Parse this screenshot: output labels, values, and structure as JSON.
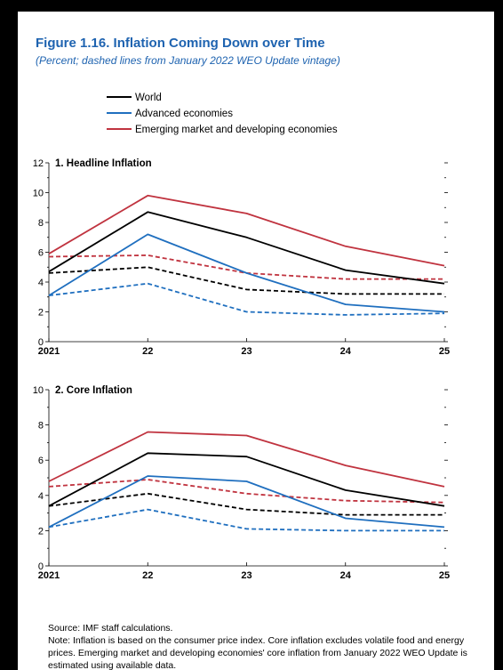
{
  "figure": {
    "title": "Figure 1.16.  Inflation Coming Down over Time",
    "subtitle": "(Percent; dashed lines from January 2022 WEO Update vintage)"
  },
  "legend": {
    "items": [
      {
        "label": "World",
        "color": "#000000"
      },
      {
        "label": "Advanced economies",
        "color": "#1f6fbf"
      },
      {
        "label": "Emerging market and developing economies",
        "color": "#c0333f"
      }
    ]
  },
  "notes": {
    "source": "Source: IMF staff calculations.",
    "note": "Note: Inflation is based on the consumer price index. Core inflation excludes volatile food and energy prices. Emerging market and developing economies' core inflation from January 2022 WEO Update is estimated using available data."
  },
  "chart_data": [
    {
      "type": "line",
      "title": "1. Headline Inflation",
      "x": [
        "2021",
        "22",
        "23",
        "24",
        "25"
      ],
      "ylim": [
        0,
        12
      ],
      "yticks": [
        0,
        2,
        4,
        6,
        8,
        10,
        12
      ],
      "series": [
        {
          "name": "World",
          "style": "solid",
          "color": "#000000",
          "values": [
            4.7,
            8.7,
            7.0,
            4.8,
            3.9
          ]
        },
        {
          "name": "Advanced economies",
          "style": "solid",
          "color": "#1f6fbf",
          "values": [
            3.1,
            7.2,
            4.6,
            2.5,
            2.0
          ]
        },
        {
          "name": "Emerging market and developing economies",
          "style": "solid",
          "color": "#c0333f",
          "values": [
            5.9,
            9.8,
            8.6,
            6.4,
            5.1
          ]
        },
        {
          "name": "World",
          "style": "dashed",
          "color": "#000000",
          "values": [
            4.6,
            5.0,
            3.5,
            3.2,
            3.2
          ]
        },
        {
          "name": "Advanced economies",
          "style": "dashed",
          "color": "#1f6fbf",
          "values": [
            3.1,
            3.9,
            2.0,
            1.8,
            1.9
          ]
        },
        {
          "name": "Emerging market and developing economies",
          "style": "dashed",
          "color": "#c0333f",
          "values": [
            5.7,
            5.8,
            4.6,
            4.2,
            4.2
          ]
        }
      ]
    },
    {
      "type": "line",
      "title": "2. Core Inflation",
      "x": [
        "2021",
        "22",
        "23",
        "24",
        "25"
      ],
      "ylim": [
        0,
        10
      ],
      "yticks": [
        0,
        2,
        4,
        6,
        8,
        10
      ],
      "series": [
        {
          "name": "World",
          "style": "solid",
          "color": "#000000",
          "values": [
            3.4,
            6.4,
            6.2,
            4.3,
            3.4
          ]
        },
        {
          "name": "Advanced economies",
          "style": "solid",
          "color": "#1f6fbf",
          "values": [
            2.2,
            5.1,
            4.8,
            2.7,
            2.2
          ]
        },
        {
          "name": "Emerging market and developing economies",
          "style": "solid",
          "color": "#c0333f",
          "values": [
            4.8,
            7.6,
            7.4,
            5.7,
            4.5
          ]
        },
        {
          "name": "World",
          "style": "dashed",
          "color": "#000000",
          "values": [
            3.4,
            4.1,
            3.2,
            2.9,
            2.9
          ]
        },
        {
          "name": "Advanced economies",
          "style": "dashed",
          "color": "#1f6fbf",
          "values": [
            2.2,
            3.2,
            2.1,
            2.0,
            2.0
          ]
        },
        {
          "name": "Emerging market and developing economies",
          "style": "dashed",
          "color": "#c0333f",
          "values": [
            4.5,
            4.9,
            4.1,
            3.7,
            3.6
          ]
        }
      ]
    }
  ]
}
